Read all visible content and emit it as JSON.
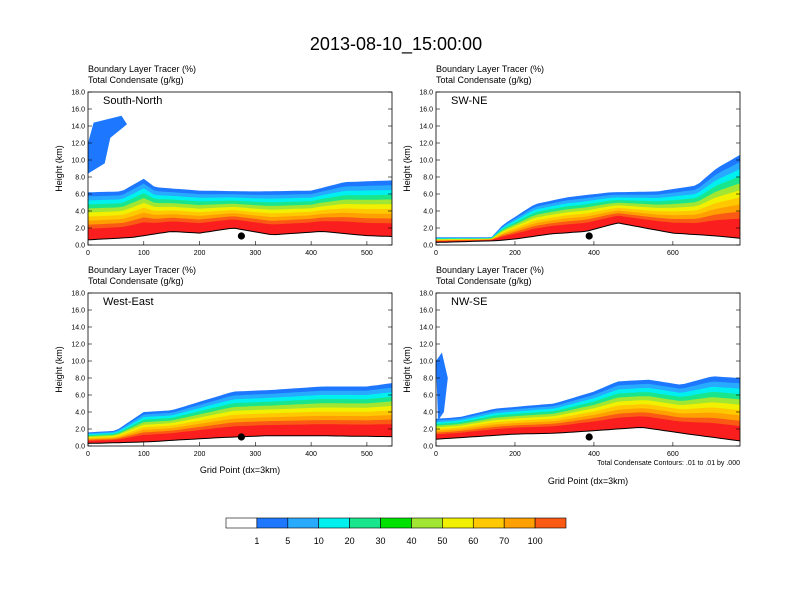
{
  "title": "2013-08-10_15:00:00",
  "colorbar": {
    "ticks": [
      "1",
      "5",
      "10",
      "20",
      "30",
      "40",
      "50",
      "60",
      "70",
      "100"
    ],
    "colors": [
      "#ffffff",
      "#1e78ff",
      "#28aaff",
      "#00f0f0",
      "#19e68c",
      "#00e100",
      "#a0e632",
      "#f0f000",
      "#ffc800",
      "#ffa000",
      "#fa5a14",
      "#fa1e1e"
    ]
  },
  "chart_data": [
    {
      "type": "heatmap",
      "panel_label": "South-North",
      "subtitle_line1": "Boundary Layer Tracer   (%)",
      "subtitle_line2": "Total Condensate   (g/kg)",
      "ylabel": "Height (km)",
      "xlabel": "",
      "ylim": [
        0,
        18
      ],
      "xlim": [
        0,
        545
      ],
      "xticks": [
        "0",
        "100",
        "200",
        "300",
        "400",
        "500"
      ],
      "yticks": [
        "0.0",
        "2.0",
        "4.0",
        "6.0",
        "8.0",
        "10.0",
        "12.0",
        "14.0",
        "16.0",
        "18.0"
      ],
      "marker_x": 275,
      "note": ""
    },
    {
      "type": "heatmap",
      "panel_label": "SW-NE",
      "subtitle_line1": "Boundary Layer Tracer   (%)",
      "subtitle_line2": "Total Condensate   (g/kg)",
      "ylabel": "Height (km)",
      "xlabel": "",
      "ylim": [
        0,
        18
      ],
      "xlim": [
        0,
        770
      ],
      "xticks": [
        "0",
        "200",
        "400",
        "600"
      ],
      "yticks": [
        "0.0",
        "2.0",
        "4.0",
        "6.0",
        "8.0",
        "10.0",
        "12.0",
        "14.0",
        "16.0",
        "18.0"
      ],
      "marker_x": 388,
      "note": ""
    },
    {
      "type": "heatmap",
      "panel_label": "West-East",
      "subtitle_line1": "Boundary Layer Tracer   (%)",
      "subtitle_line2": "Total Condensate   (g/kg)",
      "ylabel": "Height (km)",
      "xlabel": "Grid Point (dx=3km)",
      "ylim": [
        0,
        18
      ],
      "xlim": [
        0,
        545
      ],
      "xticks": [
        "0",
        "100",
        "200",
        "300",
        "400",
        "500"
      ],
      "yticks": [
        "0.0",
        "2.0",
        "4.0",
        "6.0",
        "8.0",
        "10.0",
        "12.0",
        "14.0",
        "16.0",
        "18.0"
      ],
      "marker_x": 275,
      "note": ""
    },
    {
      "type": "heatmap",
      "panel_label": "NW-SE",
      "subtitle_line1": "Boundary Layer Tracer   (%)",
      "subtitle_line2": "Total Condensate   (g/kg)",
      "ylabel": "Height (km)",
      "xlabel": "Grid Point (dx=3km)",
      "ylim": [
        0,
        18
      ],
      "xlim": [
        0,
        770
      ],
      "xticks": [
        "0",
        "200",
        "400",
        "600"
      ],
      "yticks": [
        "0.0",
        "2.0",
        "4.0",
        "6.0",
        "8.0",
        "10.0",
        "12.0",
        "14.0",
        "16.0",
        "18.0"
      ],
      "marker_x": 388,
      "note": "Total Condensate Contours: .01 to .01 by .000"
    }
  ]
}
